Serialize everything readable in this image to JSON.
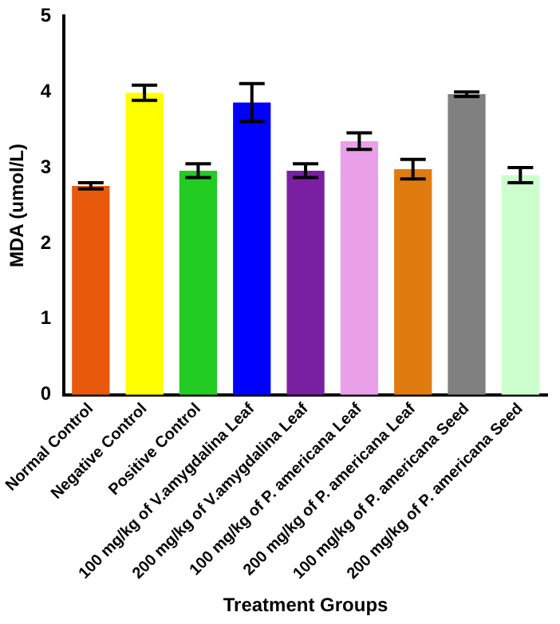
{
  "chart_data": {
    "type": "bar",
    "xlabel": "Treatment Groups",
    "ylabel": "MDA (umol/L)",
    "categories": [
      "Normal Control",
      "Negative Control",
      "Positive Control",
      "100 mg/kg of V.amygdalina Leaf",
      "200 mg/kg of V.amygdalina Leaf",
      "100 mg/kg of P. americana Leaf",
      "200 mg/kg of P. americana Leaf",
      "100 mg/kg of P. americana Seed",
      "200 mg/kg of P. americana Seed"
    ],
    "values": [
      2.76,
      3.99,
      2.96,
      3.86,
      2.96,
      3.35,
      2.98,
      3.97,
      2.9
    ],
    "errors": [
      0.04,
      0.1,
      0.09,
      0.25,
      0.09,
      0.11,
      0.13,
      0.03,
      0.1
    ],
    "colors": [
      "#e8590c",
      "#ffff00",
      "#22cc22",
      "#0000ff",
      "#7a1fa2",
      "#e9a0e9",
      "#e07b10",
      "#808080",
      "#ccffcc"
    ],
    "ylim": [
      0,
      5
    ],
    "yticks": [
      0,
      1,
      2,
      3,
      4,
      5
    ],
    "grid": false,
    "legend": false
  }
}
